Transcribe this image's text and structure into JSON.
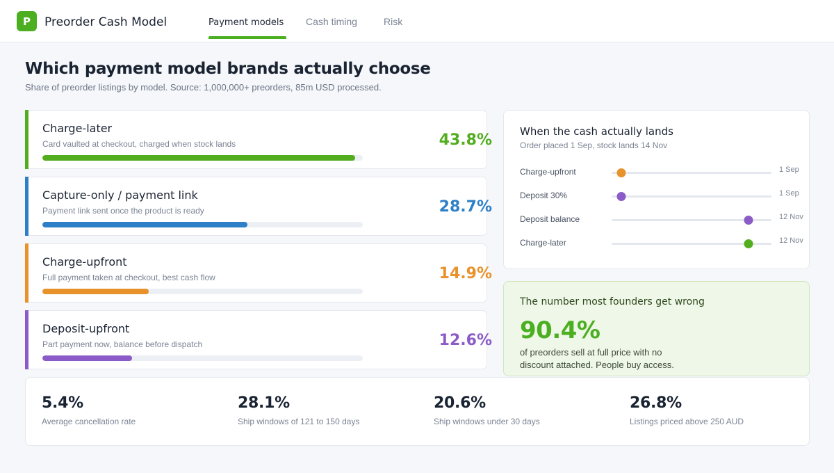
{
  "app": {
    "logo_letter": "P",
    "title": "Preorder Cash Model"
  },
  "tabs": [
    {
      "label": "Payment models",
      "active": true
    },
    {
      "label": "Cash timing",
      "active": false
    },
    {
      "label": "Risk",
      "active": false
    }
  ],
  "headline": "Which payment model brands actually choose",
  "subline": "Share of preorder listings by model. Source: 1,000,000+ preorders, 85m USD processed.",
  "models": [
    {
      "name": "Charge-later",
      "desc": "Card vaulted at checkout, charged when stock lands",
      "pct_label": "43.8%",
      "share": 43.8,
      "color": "#52ad1f"
    },
    {
      "name": "Capture-only / payment link",
      "desc": "Payment link sent once the product is ready",
      "pct_label": "28.7%",
      "share": 28.7,
      "color": "#2d7fc7"
    },
    {
      "name": "Charge-upfront",
      "desc": "Full payment taken at checkout, best cash flow",
      "pct_label": "14.9%",
      "share": 14.9,
      "color": "#e8922c"
    },
    {
      "name": "Deposit-upfront",
      "desc": "Part payment now, balance before dispatch",
      "pct_label": "12.6%",
      "share": 12.6,
      "color": "#8b5cc7"
    }
  ],
  "timing": {
    "title": "When the cash actually lands",
    "subtitle": "Order placed 1 Sep, stock lands 14 Nov",
    "rows": [
      {
        "label": "Charge-upfront",
        "date": "1 Sep",
        "position": 0.06,
        "color": "#e8922c"
      },
      {
        "label": "Deposit 30%",
        "date": "1 Sep",
        "position": 0.06,
        "color": "#8b5cc7"
      },
      {
        "label": "Deposit balance",
        "date": "12 Nov",
        "position": 0.855,
        "color": "#8b5cc7"
      },
      {
        "label": "Charge-later",
        "date": "12 Nov",
        "position": 0.855,
        "color": "#52ad1f"
      }
    ]
  },
  "callout": {
    "title": "The number most founders get wrong",
    "value": "90.4%",
    "text": "of preorders sell at full price with no discount attached. People buy access."
  },
  "stats": [
    {
      "value": "5.4%",
      "label": "Average cancellation rate"
    },
    {
      "value": "28.1%",
      "label": "Ship windows of 121 to 150 days"
    },
    {
      "value": "20.6%",
      "label": "Ship windows under 30 days"
    },
    {
      "value": "26.8%",
      "label": "Listings priced above 250 AUD"
    }
  ]
}
